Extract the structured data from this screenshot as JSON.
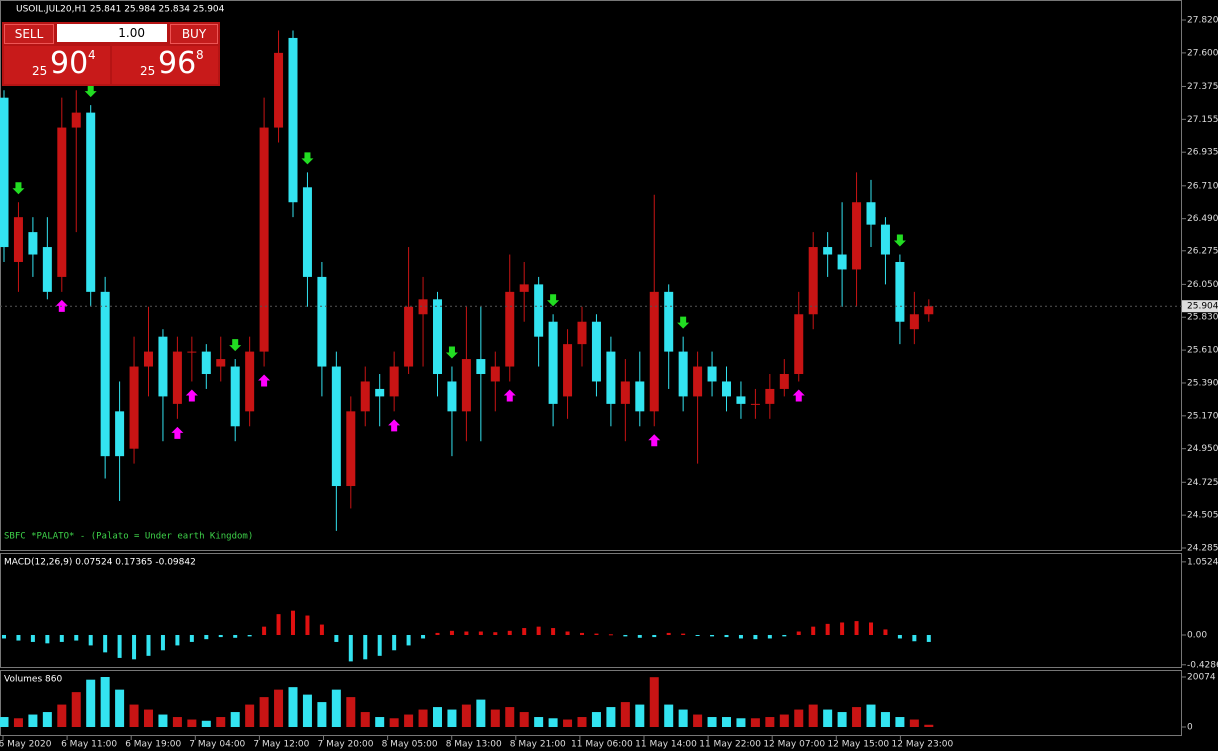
{
  "chart_data": [
    {
      "type": "candlestick",
      "title": "USOIL.JUL20,H1  25.841 25.984 25.834 25.904",
      "annotation": "SBFC *PALATO* - (Palato = Under earth Kingdom)",
      "up_color": "#c81414",
      "down_color": "#33e3f0",
      "open": [
        27.3,
        26.2,
        26.4,
        26.3,
        26.1,
        27.1,
        27.2,
        26.0,
        25.2,
        24.95,
        25.5,
        25.7,
        25.25,
        25.6,
        25.6,
        25.5,
        25.5,
        25.2,
        25.6,
        27.1,
        27.7,
        26.7,
        26.1,
        25.5,
        24.7,
        25.2,
        25.35,
        25.3,
        25.5,
        25.85,
        25.95,
        25.4,
        25.2,
        25.55,
        25.4,
        25.5,
        26.0,
        26.05,
        25.8,
        25.3,
        25.65,
        25.8,
        25.6,
        25.25,
        25.4,
        25.2,
        26.0,
        25.6,
        25.3,
        25.5,
        25.4,
        25.3,
        25.25,
        25.25,
        25.35,
        25.45,
        25.85,
        26.3,
        26.25,
        26.15,
        26.6,
        26.45,
        26.2,
        25.75,
        25.85
      ],
      "high": [
        27.35,
        26.6,
        26.5,
        26.5,
        27.3,
        27.35,
        27.25,
        26.1,
        25.4,
        25.7,
        25.9,
        25.75,
        25.7,
        25.7,
        25.65,
        25.7,
        25.55,
        25.7,
        27.3,
        27.75,
        27.75,
        26.8,
        26.2,
        25.6,
        25.3,
        25.5,
        25.45,
        25.6,
        26.3,
        26.1,
        26.0,
        25.5,
        25.9,
        25.9,
        25.6,
        26.25,
        26.2,
        26.1,
        25.85,
        25.75,
        25.9,
        25.85,
        25.7,
        25.55,
        25.6,
        26.65,
        26.05,
        25.7,
        25.6,
        25.6,
        25.5,
        25.4,
        25.35,
        25.45,
        25.55,
        26.0,
        26.4,
        26.4,
        26.6,
        26.8,
        26.75,
        26.5,
        26.25,
        26.0,
        25.95
      ],
      "low": [
        26.2,
        26.0,
        26.1,
        25.95,
        26.0,
        26.4,
        25.9,
        24.75,
        24.6,
        24.85,
        25.3,
        25.0,
        25.15,
        25.4,
        25.35,
        25.4,
        25.0,
        25.1,
        25.5,
        27.0,
        26.5,
        25.9,
        25.3,
        24.4,
        24.55,
        25.1,
        25.1,
        25.2,
        25.45,
        25.5,
        25.3,
        24.9,
        25.0,
        25.0,
        25.2,
        25.4,
        25.8,
        25.5,
        25.1,
        25.15,
        25.5,
        25.3,
        25.1,
        25.0,
        25.1,
        25.1,
        25.35,
        25.2,
        24.85,
        25.3,
        25.2,
        25.15,
        25.15,
        25.15,
        25.3,
        25.4,
        25.75,
        26.1,
        25.9,
        25.9,
        26.3,
        26.05,
        25.65,
        25.65,
        25.8
      ],
      "close": [
        26.3,
        26.5,
        26.25,
        26.0,
        27.1,
        27.2,
        26.0,
        24.9,
        24.9,
        25.5,
        25.6,
        25.3,
        25.6,
        25.6,
        25.45,
        25.55,
        25.1,
        25.6,
        27.1,
        27.6,
        26.6,
        26.1,
        25.5,
        24.7,
        25.2,
        25.4,
        25.3,
        25.5,
        25.9,
        25.95,
        25.45,
        25.2,
        25.55,
        25.45,
        25.5,
        26.0,
        26.05,
        25.7,
        25.25,
        25.65,
        25.8,
        25.4,
        25.25,
        25.4,
        25.2,
        26.0,
        25.6,
        25.3,
        25.5,
        25.4,
        25.3,
        25.25,
        25.25,
        25.35,
        25.45,
        25.85,
        26.3,
        26.25,
        26.15,
        26.6,
        26.45,
        26.25,
        25.8,
        25.85,
        25.904
      ],
      "current_price": 25.904,
      "buy_signals": [
        4,
        12,
        13,
        18,
        27,
        35,
        45,
        55
      ],
      "sell_signals": [
        1,
        6,
        16,
        21,
        31,
        38,
        47,
        62
      ],
      "ylim": [
        24.265,
        27.954
      ],
      "yticks": [
        {
          "value": 27.82,
          "label": "27.820"
        },
        {
          "value": 27.6,
          "label": "27.600"
        },
        27.375,
        27.155,
        26.935,
        {
          "value": 26.71,
          "label": "26.710"
        },
        {
          "value": 26.49,
          "label": "26.490"
        },
        26.275,
        {
          "value": 26.05,
          "label": "26.050"
        },
        {
          "value": 25.83,
          "label": "25.830"
        },
        {
          "value": 25.61,
          "label": "25.610"
        },
        {
          "value": 25.39,
          "label": "25.390"
        },
        {
          "value": 25.17,
          "label": "25.170"
        },
        {
          "value": 24.95,
          "label": "24.950"
        },
        24.725,
        24.505,
        24.285
      ]
    },
    {
      "type": "macd",
      "title": "MACD(12,26,9) 0.07524 0.17365 -0.09842",
      "values": [
        -0.05,
        -0.08,
        -0.1,
        -0.12,
        -0.1,
        -0.08,
        -0.15,
        -0.25,
        -0.33,
        -0.35,
        -0.3,
        -0.22,
        -0.15,
        -0.1,
        -0.06,
        -0.03,
        -0.04,
        -0.02,
        0.12,
        0.3,
        0.35,
        0.28,
        0.15,
        -0.1,
        -0.38,
        -0.35,
        -0.3,
        -0.22,
        -0.15,
        -0.05,
        0.03,
        0.06,
        0.05,
        0.05,
        0.04,
        0.06,
        0.1,
        0.12,
        0.1,
        0.05,
        0.03,
        0.02,
        0.01,
        -0.02,
        -0.04,
        -0.03,
        0.03,
        0.02,
        -0.01,
        -0.02,
        -0.03,
        -0.05,
        -0.06,
        -0.05,
        -0.02,
        0.05,
        0.12,
        0.16,
        0.18,
        0.2,
        0.18,
        0.08,
        -0.05,
        -0.09,
        -0.1
      ],
      "up_color": "#e01010",
      "down_color": "#33e3f0",
      "ylim": [
        -0.475,
        1.18
      ],
      "yticks": [
        1.05249,
        {
          "value": 0,
          "label": "0.00"
        },
        -0.4286
      ]
    },
    {
      "type": "volume",
      "title": "Volumes 860",
      "values": [
        4000,
        3500,
        5000,
        6000,
        9000,
        14000,
        19000,
        20074,
        15000,
        9000,
        7000,
        5000,
        4000,
        3000,
        2500,
        4000,
        6000,
        9000,
        12000,
        15000,
        16000,
        13000,
        10000,
        15000,
        12000,
        6000,
        4000,
        3500,
        5000,
        7000,
        8000,
        7000,
        9000,
        11000,
        7000,
        8000,
        6000,
        4000,
        3500,
        3000,
        4000,
        6000,
        8000,
        10000,
        9000,
        20000,
        9000,
        7000,
        5000,
        4000,
        4000,
        3500,
        3500,
        4000,
        5000,
        7000,
        9000,
        7000,
        6000,
        8000,
        9000,
        6000,
        4000,
        3000,
        900
      ],
      "ylim": [
        -3613,
        22483
      ],
      "yticks": [
        20074,
        0
      ],
      "time_labels": [
        "6 May 2020",
        "6 May 11:00",
        "6 May 19:00",
        "7 May 04:00",
        "7 May 12:00",
        "7 May 20:00",
        "8 May 05:00",
        "8 May 13:00",
        "8 May 21:00",
        "11 May 06:00",
        "11 May 14:00",
        "11 May 22:00",
        "12 May 07:00",
        "12 May 15:00",
        "12 May 23:00"
      ]
    }
  ],
  "trade_panel": {
    "sell": "SELL",
    "buy": "BUY",
    "lot": "1.00",
    "bid": {
      "big": "25",
      "main": "90",
      "small": "4"
    },
    "ask": {
      "big": "25",
      "main": "96",
      "small": "8"
    }
  }
}
